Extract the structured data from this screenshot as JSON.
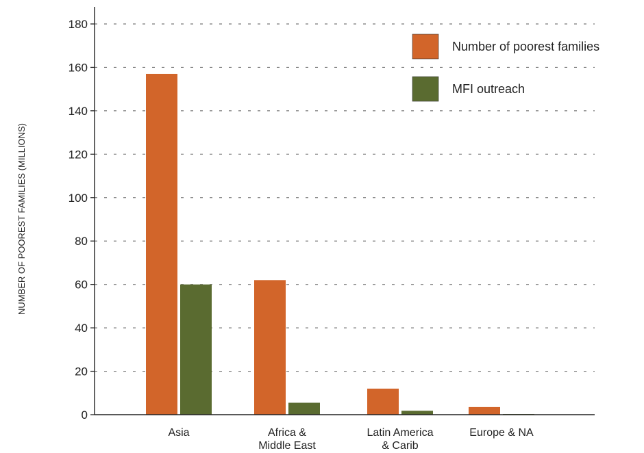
{
  "chart_data": {
    "type": "bar",
    "title": "",
    "xlabel": "",
    "ylabel": "NUMBER OF POOREST FAMILIES (MILLIONS)",
    "ylim": [
      0,
      180
    ],
    "yticks": [
      0,
      20,
      40,
      60,
      80,
      100,
      120,
      140,
      160,
      180
    ],
    "categories": [
      [
        "Asia"
      ],
      [
        "Africa &",
        "Middle East"
      ],
      [
        "Latin America",
        "& Carib"
      ],
      [
        "Europe & NA"
      ]
    ],
    "series": [
      {
        "name": "Number of poorest families",
        "color": "#d2652a",
        "values": [
          157,
          62,
          12,
          3.5
        ]
      },
      {
        "name": "MFI outreach",
        "color": "#5a6b30",
        "values": [
          60,
          5.5,
          1.8,
          0.3
        ]
      }
    ],
    "grid": "horizontal dashed",
    "legend_position": "top-right"
  }
}
